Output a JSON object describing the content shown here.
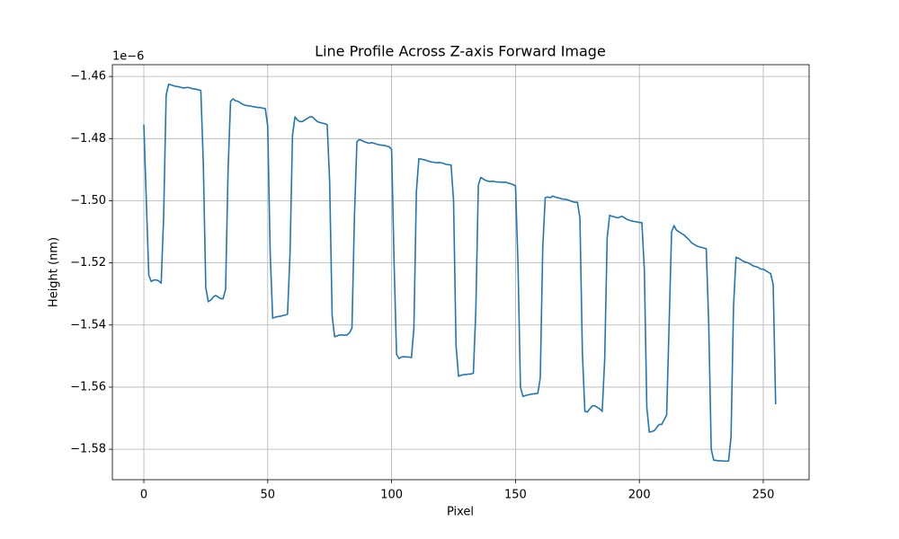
{
  "chart_data": {
    "type": "line",
    "title": "Line Profile Across Z-axis Forward Image",
    "x_label": "Pixel",
    "y_label": "Height (nm)",
    "y_offset_label": "1e−6",
    "color": "#1f77b4",
    "grid": true,
    "xlim": [
      -12.7,
      268.5
    ],
    "ylim": [
      -1.5898,
      -1.4562
    ],
    "xticks": [
      0,
      50,
      100,
      150,
      200,
      250
    ],
    "yticks": [
      {
        "value": -1.58,
        "label": "−1.58"
      },
      {
        "value": -1.56,
        "label": "−1.56"
      },
      {
        "value": -1.54,
        "label": "−1.54"
      },
      {
        "value": -1.52,
        "label": "−1.52"
      },
      {
        "value": -1.5,
        "label": "−1.50"
      },
      {
        "value": -1.48,
        "label": "−1.48"
      },
      {
        "value": -1.46,
        "label": "−1.46"
      }
    ],
    "x": [
      0,
      1,
      2,
      3,
      4,
      5,
      6,
      7,
      8,
      9,
      10,
      11,
      12,
      13,
      14,
      15,
      16,
      17,
      18,
      19,
      20,
      21,
      22,
      23,
      24,
      25,
      26,
      27,
      28,
      29,
      30,
      31,
      32,
      33,
      34,
      35,
      36,
      37,
      38,
      39,
      40,
      41,
      42,
      43,
      44,
      45,
      46,
      47,
      48,
      49,
      50,
      51,
      52,
      53,
      54,
      55,
      56,
      57,
      58,
      59,
      60,
      61,
      62,
      63,
      64,
      65,
      66,
      67,
      68,
      69,
      70,
      71,
      72,
      73,
      74,
      75,
      76,
      77,
      78,
      79,
      80,
      81,
      82,
      83,
      84,
      85,
      86,
      87,
      88,
      89,
      90,
      91,
      92,
      93,
      94,
      95,
      96,
      97,
      98,
      99,
      100,
      101,
      102,
      103,
      104,
      105,
      106,
      107,
      108,
      109,
      110,
      111,
      112,
      113,
      114,
      115,
      116,
      117,
      118,
      119,
      120,
      121,
      122,
      123,
      124,
      125,
      126,
      127,
      128,
      129,
      130,
      131,
      132,
      133,
      134,
      135,
      136,
      137,
      138,
      139,
      140,
      141,
      142,
      143,
      144,
      145,
      146,
      147,
      148,
      149,
      150,
      151,
      152,
      153,
      154,
      155,
      156,
      157,
      158,
      159,
      160,
      161,
      162,
      163,
      164,
      165,
      166,
      167,
      168,
      169,
      170,
      171,
      172,
      173,
      174,
      175,
      176,
      177,
      178,
      179,
      180,
      181,
      182,
      183,
      184,
      185,
      186,
      187,
      188,
      189,
      190,
      191,
      192,
      193,
      194,
      195,
      196,
      197,
      198,
      199,
      200,
      201,
      202,
      203,
      204,
      205,
      206,
      207,
      208,
      209,
      210,
      211,
      212,
      213,
      214,
      215,
      216,
      217,
      218,
      219,
      220,
      221,
      222,
      223,
      224,
      225,
      226,
      227,
      228,
      229,
      230,
      231,
      232,
      233,
      234,
      235,
      236,
      237,
      238,
      239,
      240,
      241,
      242,
      243,
      244,
      245,
      246,
      247,
      248,
      249,
      250,
      251,
      252,
      253,
      254,
      255
    ],
    "values": [
      -1.4755,
      -1.5,
      -1.524,
      -1.526,
      -1.5255,
      -1.5255,
      -1.5258,
      -1.5265,
      -1.505,
      -1.466,
      -1.4625,
      -1.4627,
      -1.463,
      -1.4632,
      -1.4633,
      -1.4635,
      -1.4637,
      -1.4636,
      -1.4635,
      -1.4638,
      -1.464,
      -1.4641,
      -1.4643,
      -1.4645,
      -1.488,
      -1.528,
      -1.5325,
      -1.532,
      -1.531,
      -1.5305,
      -1.531,
      -1.5315,
      -1.5315,
      -1.5285,
      -1.49,
      -1.468,
      -1.4672,
      -1.4678,
      -1.468,
      -1.4685,
      -1.469,
      -1.4693,
      -1.4694,
      -1.4695,
      -1.4697,
      -1.4698,
      -1.47,
      -1.47,
      -1.4702,
      -1.4703,
      -1.476,
      -1.517,
      -1.5378,
      -1.5375,
      -1.5373,
      -1.5372,
      -1.537,
      -1.5368,
      -1.5365,
      -1.517,
      -1.479,
      -1.473,
      -1.474,
      -1.4745,
      -1.4745,
      -1.474,
      -1.4735,
      -1.473,
      -1.473,
      -1.4738,
      -1.4745,
      -1.4748,
      -1.475,
      -1.4752,
      -1.4755,
      -1.494,
      -1.537,
      -1.5438,
      -1.5435,
      -1.5432,
      -1.5432,
      -1.5433,
      -1.5432,
      -1.5425,
      -1.541,
      -1.505,
      -1.481,
      -1.4803,
      -1.4806,
      -1.481,
      -1.4813,
      -1.4815,
      -1.4813,
      -1.4815,
      -1.4818,
      -1.482,
      -1.4821,
      -1.4822,
      -1.4824,
      -1.4826,
      -1.4835,
      -1.52,
      -1.5495,
      -1.5508,
      -1.5503,
      -1.5502,
      -1.5503,
      -1.5503,
      -1.5505,
      -1.541,
      -1.497,
      -1.4865,
      -1.4866,
      -1.4868,
      -1.487,
      -1.4873,
      -1.4875,
      -1.4876,
      -1.4878,
      -1.4877,
      -1.4878,
      -1.488,
      -1.4883,
      -1.4884,
      -1.4885,
      -1.5,
      -1.5465,
      -1.5565,
      -1.5562,
      -1.556,
      -1.5559,
      -1.5558,
      -1.5558,
      -1.5555,
      -1.535,
      -1.495,
      -1.4925,
      -1.493,
      -1.4935,
      -1.4937,
      -1.4938,
      -1.4937,
      -1.4939,
      -1.494,
      -1.494,
      -1.4941,
      -1.494,
      -1.4943,
      -1.4945,
      -1.4948,
      -1.4952,
      -1.52,
      -1.56,
      -1.563,
      -1.5627,
      -1.5625,
      -1.5623,
      -1.5622,
      -1.5621,
      -1.562,
      -1.557,
      -1.515,
      -1.499,
      -1.4988,
      -1.499,
      -1.4985,
      -1.4988,
      -1.499,
      -1.4992,
      -1.4995,
      -1.4995,
      -1.4997,
      -1.5,
      -1.5003,
      -1.5005,
      -1.5005,
      -1.5055,
      -1.549,
      -1.5678,
      -1.568,
      -1.567,
      -1.566,
      -1.566,
      -1.5665,
      -1.567,
      -1.5678,
      -1.551,
      -1.512,
      -1.5047,
      -1.505,
      -1.5052,
      -1.5055,
      -1.5053,
      -1.505,
      -1.5055,
      -1.506,
      -1.5063,
      -1.5065,
      -1.5067,
      -1.5068,
      -1.507,
      -1.507,
      -1.522,
      -1.5665,
      -1.5745,
      -1.5743,
      -1.574,
      -1.573,
      -1.572,
      -1.572,
      -1.5705,
      -1.569,
      -1.54,
      -1.51,
      -1.508,
      -1.5095,
      -1.51,
      -1.5105,
      -1.511,
      -1.5118,
      -1.5125,
      -1.5135,
      -1.514,
      -1.5145,
      -1.5148,
      -1.515,
      -1.5152,
      -1.5155,
      -1.54,
      -1.58,
      -1.5835,
      -1.5836,
      -1.5837,
      -1.5837,
      -1.5838,
      -1.5838,
      -1.5838,
      -1.576,
      -1.534,
      -1.5182,
      -1.5185,
      -1.519,
      -1.5195,
      -1.5198,
      -1.52,
      -1.5205,
      -1.521,
      -1.5212,
      -1.5215,
      -1.522,
      -1.522,
      -1.5225,
      -1.523,
      -1.5235,
      -1.527,
      -1.5655
    ]
  }
}
